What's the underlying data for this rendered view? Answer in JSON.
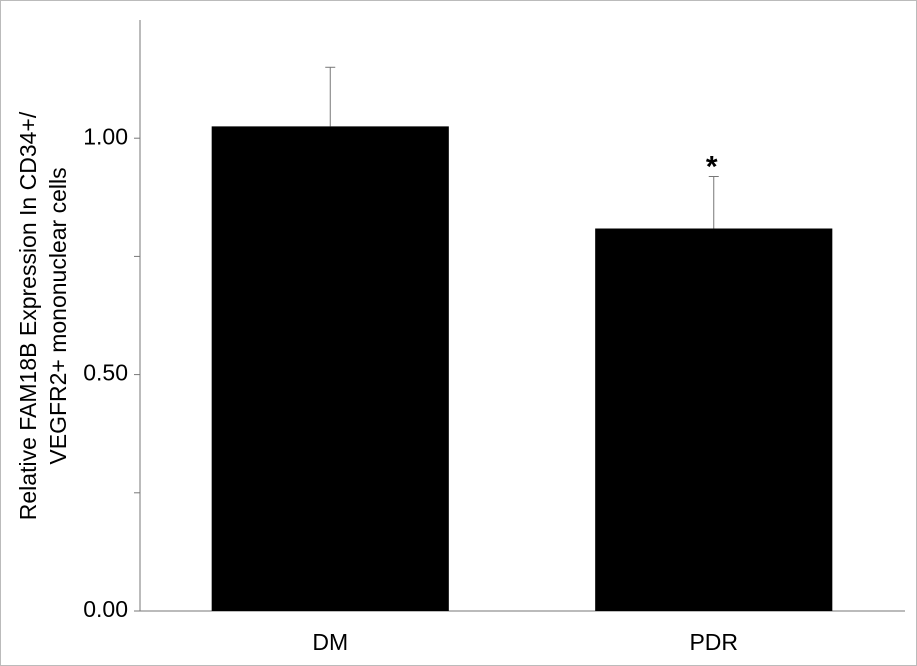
{
  "chart_data": {
    "type": "bar",
    "y_label": [
      "Relative FAM18B Expression In CD34+/",
      "VEGFR2+ mononuclear cells"
    ],
    "categories": [
      "DM",
      "PDR"
    ],
    "values": [
      1.025,
      0.809
    ],
    "errors": [
      0.125,
      0.11
    ],
    "color": "#000000",
    "annotation": "*",
    "ylim": [
      0,
      1.25
    ],
    "yticks": [
      {
        "value": 0,
        "label": "0.00"
      },
      {
        "value": 0.5,
        "label": "0.50"
      },
      {
        "value": 1,
        "label": "1.00"
      }
    ],
    "minor_yticks": [
      0.25,
      0.75
    ],
    "grid": false
  }
}
